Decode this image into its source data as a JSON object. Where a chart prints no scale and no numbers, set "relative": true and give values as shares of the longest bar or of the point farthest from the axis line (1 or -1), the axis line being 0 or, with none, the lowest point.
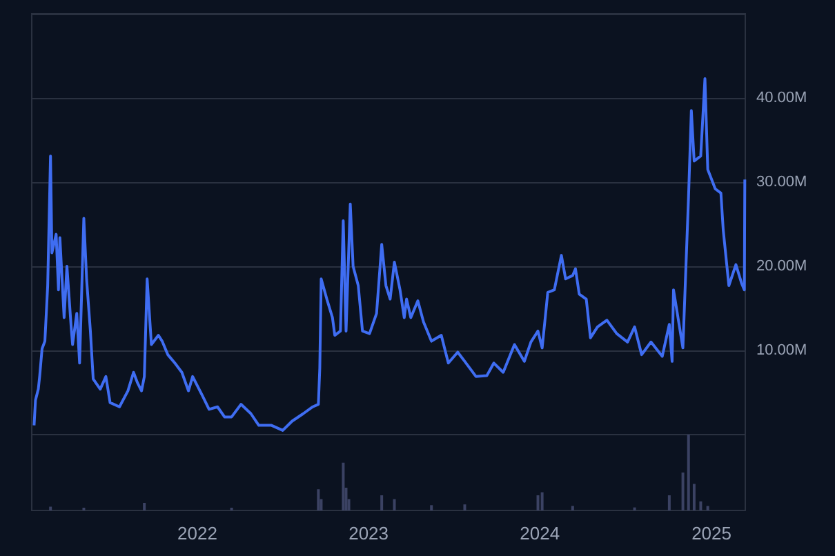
{
  "chart_data": [
    {
      "type": "line",
      "x": [
        "2021-01-18",
        "2021-01-21",
        "2021-01-27",
        "2021-01-30",
        "2021-02-04",
        "2021-02-10",
        "2021-02-16",
        "2021-02-22",
        "2021-02-25",
        "2021-03-06",
        "2021-03-11",
        "2021-03-14",
        "2021-03-23",
        "2021-03-29",
        "2021-04-07",
        "2021-04-10",
        "2021-04-19",
        "2021-04-25",
        "2021-05-04",
        "2021-05-10",
        "2021-05-18",
        "2021-05-24",
        "2021-06-08",
        "2021-06-20",
        "2021-06-29",
        "2021-07-19",
        "2021-08-06",
        "2021-08-18",
        "2021-08-26",
        "2021-09-04",
        "2021-09-10",
        "2021-09-16",
        "2021-09-25",
        "2021-10-10",
        "2021-10-18",
        "2021-10-30",
        "2021-11-14",
        "2021-11-29",
        "2021-12-13",
        "2021-12-22",
        "2022-01-12",
        "2022-01-26",
        "2022-02-13",
        "2022-02-28",
        "2022-03-15",
        "2022-04-04",
        "2022-04-25",
        "2022-05-12",
        "2022-06-08",
        "2022-07-02",
        "2022-07-22",
        "2022-08-15",
        "2022-09-04",
        "2022-09-16",
        "2022-09-19",
        "2022-09-22",
        "2022-10-04",
        "2022-10-16",
        "2022-10-21",
        "2022-11-02",
        "2022-11-08",
        "2022-11-14",
        "2022-11-23",
        "2022-11-29",
        "2022-12-10",
        "2022-12-19",
        "2023-01-03",
        "2023-01-18",
        "2023-01-29",
        "2023-02-07",
        "2023-02-16",
        "2023-02-25",
        "2023-03-09",
        "2023-03-18",
        "2023-03-23",
        "2023-04-01",
        "2023-04-16",
        "2023-04-28",
        "2023-05-15",
        "2023-06-05",
        "2023-06-20",
        "2023-07-10",
        "2023-07-25",
        "2023-08-18",
        "2023-09-10",
        "2023-09-25",
        "2023-10-15",
        "2023-11-08",
        "2023-11-29",
        "2023-12-13",
        "2023-12-28",
        "2024-01-06",
        "2024-01-18",
        "2024-02-01",
        "2024-02-16",
        "2024-02-25",
        "2024-03-11",
        "2024-03-17",
        "2024-03-25",
        "2024-04-09",
        "2024-04-18",
        "2024-05-03",
        "2024-05-23",
        "2024-06-13",
        "2024-07-06",
        "2024-07-21",
        "2024-08-05",
        "2024-08-25",
        "2024-09-18",
        "2024-10-03",
        "2024-10-09",
        "2024-10-12",
        "2024-10-23",
        "2024-11-01",
        "2024-11-13",
        "2024-11-19",
        "2024-11-25",
        "2024-12-09",
        "2024-12-18",
        "2024-12-24",
        "2025-01-09",
        "2025-01-21",
        "2025-01-26",
        "2025-02-07",
        "2025-02-22",
        "2025-03-06",
        "2025-03-12",
        "2025-03-13"
      ],
      "series": [
        {
          "color": "#3f6df2",
          "values": [
            1.1,
            4.1,
            5.4,
            7.0,
            10.2,
            11.1,
            17.7,
            33.1,
            21.6,
            23.8,
            17.2,
            23.4,
            13.9,
            20.0,
            12.8,
            10.7,
            14.4,
            8.5,
            25.7,
            18.4,
            12.3,
            6.6,
            5.4,
            6.9,
            3.8,
            3.3,
            5.2,
            7.4,
            6.2,
            5.2,
            6.9,
            18.5,
            10.7,
            11.8,
            11.1,
            9.5,
            8.5,
            7.4,
            5.2,
            6.9,
            4.6,
            3.0,
            3.3,
            2.1,
            2.1,
            3.6,
            2.5,
            1.1,
            1.1,
            0.5,
            1.6,
            2.5,
            3.3,
            3.6,
            7.9,
            18.5,
            16.1,
            13.9,
            11.8,
            12.3,
            25.4,
            12.3,
            27.4,
            20.0,
            17.7,
            12.3,
            12.0,
            14.4,
            22.6,
            17.7,
            16.1,
            20.5,
            17.2,
            13.9,
            16.1,
            13.9,
            15.9,
            13.4,
            11.1,
            11.8,
            8.5,
            9.8,
            8.7,
            6.9,
            7.0,
            8.5,
            7.4,
            10.7,
            8.7,
            11.0,
            12.3,
            10.3,
            16.9,
            17.2,
            21.3,
            18.5,
            18.9,
            19.7,
            16.7,
            16.1,
            11.5,
            12.8,
            13.6,
            12.0,
            11.0,
            12.8,
            9.5,
            11.0,
            9.3,
            13.1,
            8.7,
            17.2,
            13.4,
            10.3,
            28.2,
            38.5,
            32.5,
            33.1,
            42.3,
            31.5,
            29.2,
            28.7,
            24.3,
            17.7,
            20.2,
            18.0,
            17.2,
            30.3
          ]
        }
      ],
      "xlim": [
        "2021-01-13",
        "2025-03-14"
      ],
      "ylim": [
        0,
        50
      ],
      "yticks": [
        {
          "value": 0,
          "label": null
        },
        {
          "value": 10,
          "label": "10.00M"
        },
        {
          "value": 20,
          "label": "20.00M"
        },
        {
          "value": 30,
          "label": "30.00M"
        },
        {
          "value": 40,
          "label": "40.00M"
        },
        {
          "value": 50,
          "label": null
        }
      ],
      "tick_labels": "y",
      "grid": "y",
      "marker": "none"
    },
    {
      "type": "bar",
      "relative": true,
      "x": [
        "2021-02-22",
        "2021-05-04",
        "2021-09-10",
        "2022-03-15",
        "2022-09-16",
        "2022-09-22",
        "2022-11-08",
        "2022-11-14",
        "2022-11-20",
        "2023-01-29",
        "2023-02-25",
        "2023-05-15",
        "2023-07-25",
        "2023-12-28",
        "2024-01-06",
        "2024-03-11",
        "2024-07-21",
        "2024-10-03",
        "2024-11-01",
        "2024-11-13",
        "2024-11-25",
        "2024-12-09",
        "2024-12-24"
      ],
      "series": [
        {
          "color": "#3b4263",
          "values": [
            0.05,
            0.03,
            0.1,
            0.03,
            0.28,
            0.15,
            0.63,
            0.3,
            0.15,
            0.2,
            0.15,
            0.07,
            0.08,
            0.2,
            0.24,
            0.06,
            0.04,
            0.2,
            0.5,
            1,
            0.35,
            0.12,
            0.06
          ]
        }
      ],
      "xlim": [
        "2021-01-13",
        "2025-03-14"
      ],
      "xticks": [
        {
          "value": "2022",
          "label": "2022"
        },
        {
          "value": "2023",
          "label": "2023"
        },
        {
          "value": "2024",
          "label": "2024"
        },
        {
          "value": "2025",
          "label": "2025"
        }
      ],
      "tick_labels": "x",
      "grid": false
    }
  ]
}
